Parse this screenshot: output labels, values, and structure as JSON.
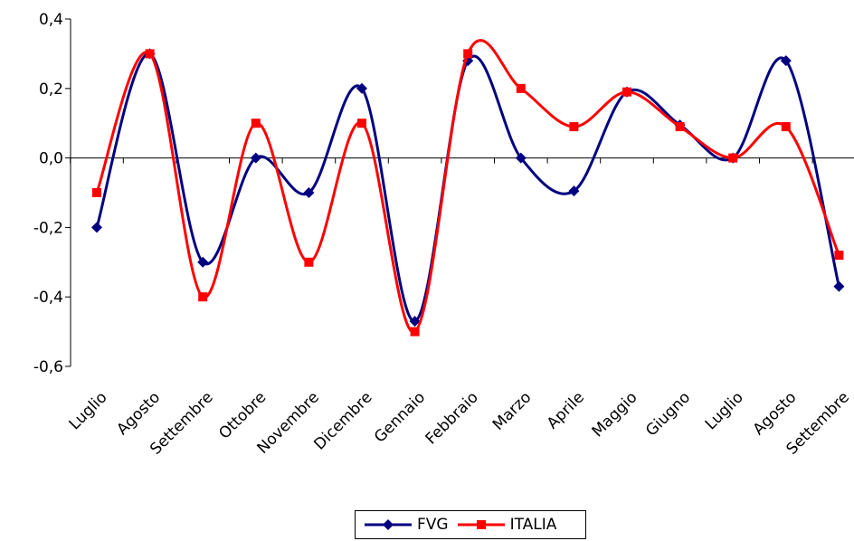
{
  "chart_data": {
    "type": "line",
    "title": "",
    "xlabel": "",
    "ylabel": "",
    "ylim": [
      -0.6,
      0.4
    ],
    "yticks": [
      "0,4",
      "0,2",
      "0,0",
      "-0,2",
      "-0,4",
      "-0,6"
    ],
    "ytick_values": [
      0.4,
      0.2,
      0.0,
      -0.2,
      -0.4,
      -0.6
    ],
    "categories": [
      "Luglio",
      "Agosto",
      "Settembre",
      "Ottobre",
      "Novembre",
      "Dicembre",
      "Gennaio",
      "Febbraio",
      "Marzo",
      "Aprile",
      "Maggio",
      "Giugno",
      "Luglio",
      "Agosto",
      "Settembre"
    ],
    "grid": false,
    "legend": "bottom",
    "series": [
      {
        "name": "FVG",
        "color": "#000080",
        "marker": "diamond",
        "values": [
          -0.2,
          0.3,
          -0.3,
          0.0,
          -0.1,
          0.2,
          -0.47,
          0.28,
          0.0,
          -0.095,
          0.19,
          0.095,
          0.0,
          0.28,
          -0.37
        ]
      },
      {
        "name": "ITALIA",
        "color": "#ff0000",
        "marker": "square",
        "values": [
          -0.1,
          0.3,
          -0.4,
          0.1,
          -0.3,
          0.1,
          -0.5,
          0.3,
          0.2,
          0.09,
          0.19,
          0.09,
          0.0,
          0.09,
          -0.28
        ]
      }
    ]
  }
}
